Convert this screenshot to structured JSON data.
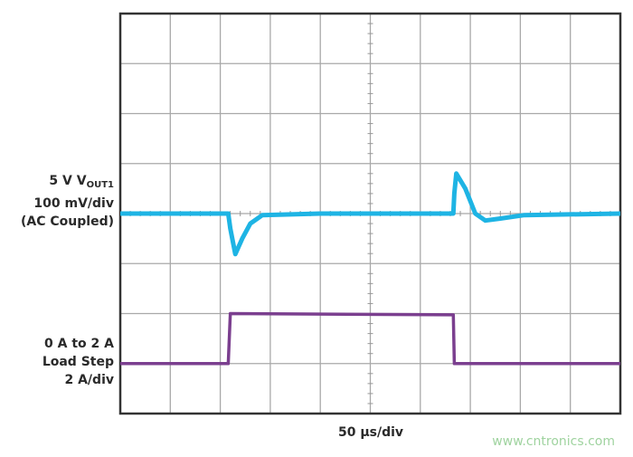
{
  "chart_data": {
    "type": "line",
    "title": "",
    "xlabel": "50 µs/div",
    "x_per_div": 50,
    "x_unit": "µs",
    "xlim": [
      0,
      500
    ],
    "grid": true,
    "grid_divisions": {
      "x": 10,
      "y": 8
    },
    "series": [
      {
        "name_parts": {
          "pre": "5 V V",
          "sub": "OUT1",
          "line2": "100 mV/div",
          "line3": "(AC Coupled)"
        },
        "unit": "mV",
        "per_div": 100,
        "color": "#1eb4e4",
        "x": [
          0,
          108,
          110,
          115,
          122,
          130,
          142,
          200,
          333,
          334,
          336,
          345,
          355,
          365,
          380,
          404,
          500
        ],
        "y": [
          0,
          0,
          -30,
          -81,
          -50,
          -20,
          -3,
          0,
          0,
          40,
          80,
          50,
          0,
          -14,
          -10,
          -3,
          0
        ]
      },
      {
        "name_parts": {
          "line1": "0 A to 2 A",
          "line2": "Load Step",
          "line3": "2 A/div"
        },
        "unit": "A",
        "per_div": 2,
        "color": "#7b3f8f",
        "x": [
          0,
          108,
          110,
          333,
          334,
          500
        ],
        "y": [
          0,
          0,
          2,
          1.95,
          0,
          0
        ]
      }
    ]
  },
  "watermark": "www.cntronics.com"
}
